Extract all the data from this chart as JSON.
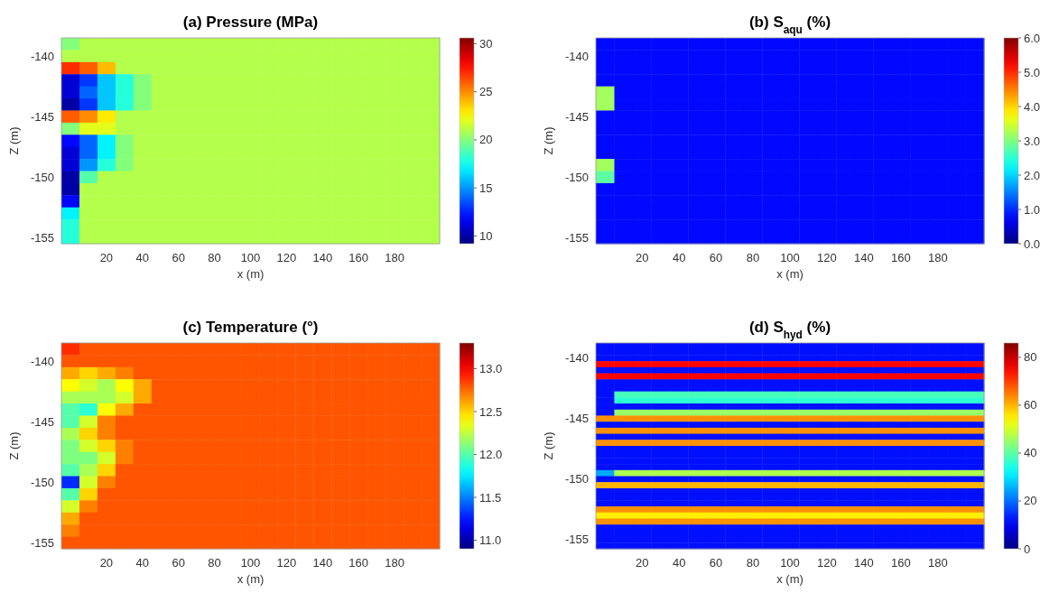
{
  "chart_data": [
    {
      "type": "heatmap",
      "title": "(a) Pressure (MPa)",
      "xlabel": "x (m)",
      "ylabel": "Z (m)",
      "clim": [
        9.2,
        30.6
      ],
      "cticks": [
        10,
        15,
        20,
        25,
        30
      ],
      "categories": [
        null,
        null,
        "20",
        null,
        "40",
        null,
        "60",
        null,
        "80",
        null,
        "100",
        null,
        "120",
        null,
        "140",
        null,
        "160",
        null,
        "180",
        null,
        null
      ],
      "y_categories": [
        null,
        "-140",
        null,
        null,
        null,
        null,
        "-145",
        null,
        null,
        null,
        null,
        "-150",
        null,
        null,
        null,
        null,
        "-155"
      ],
      "cells": [
        [
          20,
          21,
          21,
          21,
          21,
          21,
          21,
          21,
          21,
          21,
          21,
          21,
          21,
          21,
          21,
          21,
          21,
          21,
          21,
          21,
          21
        ],
        [
          21,
          21,
          21,
          21,
          21,
          21,
          21,
          21,
          21,
          21,
          21,
          21,
          21,
          21,
          21,
          21,
          21,
          21,
          21,
          21,
          21
        ],
        [
          27,
          26,
          24,
          21,
          21,
          21,
          21,
          21,
          21,
          21,
          21,
          21,
          21,
          21,
          21,
          21,
          21,
          21,
          21,
          21,
          21
        ],
        [
          11,
          13,
          16,
          18,
          20,
          21,
          21,
          21,
          21,
          21,
          21,
          21,
          21,
          21,
          21,
          21,
          21,
          21,
          21,
          21,
          21
        ],
        [
          11,
          14,
          16,
          18,
          20,
          21,
          21,
          21,
          21,
          21,
          21,
          21,
          21,
          21,
          21,
          21,
          21,
          21,
          21,
          21,
          21
        ],
        [
          10,
          13,
          16,
          18,
          20,
          21,
          21,
          21,
          21,
          21,
          21,
          21,
          21,
          21,
          21,
          21,
          21,
          21,
          21,
          21,
          21
        ],
        [
          26,
          25,
          23,
          21,
          21,
          21,
          21,
          21,
          21,
          21,
          21,
          21,
          21,
          21,
          21,
          21,
          21,
          21,
          21,
          21,
          21
        ],
        [
          20,
          22,
          22,
          21,
          21,
          21,
          21,
          21,
          21,
          21,
          21,
          21,
          21,
          21,
          21,
          21,
          21,
          21,
          21,
          21,
          21
        ],
        [
          12,
          14,
          17,
          20,
          21,
          21,
          21,
          21,
          21,
          21,
          21,
          21,
          21,
          21,
          21,
          21,
          21,
          21,
          21,
          21,
          21
        ],
        [
          11,
          14,
          17,
          20,
          21,
          21,
          21,
          21,
          21,
          21,
          21,
          21,
          21,
          21,
          21,
          21,
          21,
          21,
          21,
          21,
          21
        ],
        [
          11,
          15,
          18,
          20,
          21,
          21,
          21,
          21,
          21,
          21,
          21,
          21,
          21,
          21,
          21,
          21,
          21,
          21,
          21,
          21,
          21
        ],
        [
          10,
          19,
          21,
          21,
          21,
          21,
          21,
          21,
          21,
          21,
          21,
          21,
          21,
          21,
          21,
          21,
          21,
          21,
          21,
          21,
          21
        ],
        [
          10,
          21,
          21,
          21,
          21,
          21,
          21,
          21,
          21,
          21,
          21,
          21,
          21,
          21,
          21,
          21,
          21,
          21,
          21,
          21,
          21
        ],
        [
          12,
          21,
          21,
          21,
          21,
          21,
          21,
          21,
          21,
          21,
          21,
          21,
          21,
          21,
          21,
          21,
          21,
          21,
          21,
          21,
          21
        ],
        [
          17,
          21,
          21,
          21,
          21,
          21,
          21,
          21,
          21,
          21,
          21,
          21,
          21,
          21,
          21,
          21,
          21,
          21,
          21,
          21,
          21
        ],
        [
          18,
          21,
          21,
          21,
          21,
          21,
          21,
          21,
          21,
          21,
          21,
          21,
          21,
          21,
          21,
          21,
          21,
          21,
          21,
          21,
          21
        ],
        [
          18,
          21,
          21,
          21,
          21,
          21,
          21,
          21,
          21,
          21,
          21,
          21,
          21,
          21,
          21,
          21,
          21,
          21,
          21,
          21,
          21
        ]
      ]
    },
    {
      "type": "heatmap",
      "title": "(b) S$_{aqu}$ (%)",
      "xlabel": "x (m)",
      "ylabel": "Z (m)",
      "clim": [
        0,
        6
      ],
      "cticks": [
        {
          "value": 0,
          "label": "0.0"
        },
        {
          "value": 1,
          "label": "1.0"
        },
        {
          "value": 2,
          "label": "2.0"
        },
        {
          "value": 3,
          "label": "3.0"
        },
        {
          "value": 4,
          "label": "4.0"
        },
        {
          "value": 5,
          "label": "5.0"
        },
        {
          "value": 6,
          "label": "6.0"
        }
      ],
      "categories": [
        null,
        null,
        "20",
        null,
        "40",
        null,
        "60",
        null,
        "80",
        null,
        "100",
        null,
        "120",
        null,
        "140",
        null,
        "160",
        null,
        "180",
        null,
        null
      ],
      "y_categories": [
        null,
        "-140",
        null,
        null,
        null,
        null,
        "-145",
        null,
        null,
        null,
        null,
        "-150",
        null,
        null,
        null,
        null,
        "-155"
      ],
      "cells": [
        [
          0.8,
          0.8,
          0.8,
          0.8,
          0.8,
          0.8,
          0.8,
          0.8,
          0.8,
          0.8,
          0.8,
          0.8,
          0.8,
          0.8,
          0.8,
          0.8,
          0.8,
          0.8,
          0.8,
          0.8,
          0.8
        ],
        [
          0.8,
          0.8,
          0.8,
          0.8,
          0.8,
          0.8,
          0.8,
          0.8,
          0.8,
          0.8,
          0.8,
          0.8,
          0.8,
          0.8,
          0.8,
          0.8,
          0.8,
          0.8,
          0.8,
          0.8,
          0.8
        ],
        [
          0.8,
          0.8,
          0.8,
          0.8,
          0.8,
          0.8,
          0.8,
          0.8,
          0.8,
          0.8,
          0.8,
          0.8,
          0.8,
          0.8,
          0.8,
          0.8,
          0.8,
          0.8,
          0.8,
          0.8,
          0.8
        ],
        [
          0.8,
          0.8,
          0.8,
          0.8,
          0.8,
          0.8,
          0.8,
          0.8,
          0.8,
          0.8,
          0.8,
          0.8,
          0.8,
          0.8,
          0.8,
          0.8,
          0.8,
          0.8,
          0.8,
          0.8,
          0.8
        ],
        [
          3.2,
          0.8,
          0.8,
          0.8,
          0.8,
          0.8,
          0.8,
          0.8,
          0.8,
          0.8,
          0.8,
          0.8,
          0.8,
          0.8,
          0.8,
          0.8,
          0.8,
          0.8,
          0.8,
          0.8,
          0.8
        ],
        [
          3.2,
          0.8,
          0.8,
          0.8,
          0.8,
          0.8,
          0.8,
          0.8,
          0.8,
          0.8,
          0.8,
          0.8,
          0.8,
          0.8,
          0.8,
          0.8,
          0.8,
          0.8,
          0.8,
          0.8,
          0.8
        ],
        [
          0.8,
          0.8,
          0.8,
          0.8,
          0.8,
          0.8,
          0.8,
          0.8,
          0.8,
          0.8,
          0.8,
          0.8,
          0.8,
          0.8,
          0.8,
          0.8,
          0.8,
          0.8,
          0.8,
          0.8,
          0.8
        ],
        [
          0.8,
          0.8,
          0.8,
          0.8,
          0.8,
          0.8,
          0.8,
          0.8,
          0.8,
          0.8,
          0.8,
          0.8,
          0.8,
          0.8,
          0.8,
          0.8,
          0.8,
          0.8,
          0.8,
          0.8,
          0.8
        ],
        [
          0.8,
          0.8,
          0.8,
          0.8,
          0.8,
          0.8,
          0.8,
          0.8,
          0.8,
          0.8,
          0.8,
          0.8,
          0.8,
          0.8,
          0.8,
          0.8,
          0.8,
          0.8,
          0.8,
          0.8,
          0.8
        ],
        [
          0.8,
          0.8,
          0.8,
          0.8,
          0.8,
          0.8,
          0.8,
          0.8,
          0.8,
          0.8,
          0.8,
          0.8,
          0.8,
          0.8,
          0.8,
          0.8,
          0.8,
          0.8,
          0.8,
          0.8,
          0.8
        ],
        [
          3.2,
          0.8,
          0.8,
          0.8,
          0.8,
          0.8,
          0.8,
          0.8,
          0.8,
          0.8,
          0.8,
          0.8,
          0.8,
          0.8,
          0.8,
          0.8,
          0.8,
          0.8,
          0.8,
          0.8,
          0.8
        ],
        [
          2.8,
          0.8,
          0.8,
          0.8,
          0.8,
          0.8,
          0.8,
          0.8,
          0.8,
          0.8,
          0.8,
          0.8,
          0.8,
          0.8,
          0.8,
          0.8,
          0.8,
          0.8,
          0.8,
          0.8,
          0.8
        ],
        [
          0.8,
          0.8,
          0.8,
          0.8,
          0.8,
          0.8,
          0.8,
          0.8,
          0.8,
          0.8,
          0.8,
          0.8,
          0.8,
          0.8,
          0.8,
          0.8,
          0.8,
          0.8,
          0.8,
          0.8,
          0.8
        ],
        [
          0.8,
          0.8,
          0.8,
          0.8,
          0.8,
          0.8,
          0.8,
          0.8,
          0.8,
          0.8,
          0.8,
          0.8,
          0.8,
          0.8,
          0.8,
          0.8,
          0.8,
          0.8,
          0.8,
          0.8,
          0.8
        ],
        [
          0.8,
          0.8,
          0.8,
          0.8,
          0.8,
          0.8,
          0.8,
          0.8,
          0.8,
          0.8,
          0.8,
          0.8,
          0.8,
          0.8,
          0.8,
          0.8,
          0.8,
          0.8,
          0.8,
          0.8,
          0.8
        ],
        [
          0.8,
          0.8,
          0.8,
          0.8,
          0.8,
          0.8,
          0.8,
          0.8,
          0.8,
          0.8,
          0.8,
          0.8,
          0.8,
          0.8,
          0.8,
          0.8,
          0.8,
          0.8,
          0.8,
          0.8,
          0.8
        ],
        [
          0.8,
          0.8,
          0.8,
          0.8,
          0.8,
          0.8,
          0.8,
          0.8,
          0.8,
          0.8,
          0.8,
          0.8,
          0.8,
          0.8,
          0.8,
          0.8,
          0.8,
          0.8,
          0.8,
          0.8,
          0.8
        ]
      ]
    },
    {
      "type": "heatmap",
      "title": "(c) Temperature (°)",
      "xlabel": "x (m)",
      "ylabel": "Z (m)",
      "clim": [
        10.9,
        13.3
      ],
      "cticks": [
        {
          "value": 11,
          "label": "11.0"
        },
        {
          "value": 11.5,
          "label": "11.5"
        },
        {
          "value": 12,
          "label": "12.0"
        },
        {
          "value": 12.5,
          "label": "12.5"
        },
        {
          "value": 13,
          "label": "13.0"
        }
      ],
      "categories": [
        null,
        null,
        "20",
        null,
        "40",
        null,
        "60",
        null,
        "80",
        null,
        "100",
        null,
        "120",
        null,
        "140",
        null,
        "160",
        null,
        "180",
        null,
        null
      ],
      "y_categories": [
        null,
        "-140",
        null,
        null,
        null,
        null,
        "-145",
        null,
        null,
        null,
        null,
        "-150",
        null,
        null,
        null,
        null,
        "-155"
      ],
      "cells": [
        [
          12.9,
          12.8,
          12.8,
          12.8,
          12.8,
          12.8,
          12.8,
          12.8,
          12.8,
          12.8,
          12.8,
          12.8,
          12.8,
          12.8,
          12.8,
          12.8,
          12.8,
          12.8,
          12.8,
          12.8,
          12.8
        ],
        [
          12.8,
          12.8,
          12.8,
          12.8,
          12.8,
          12.8,
          12.8,
          12.8,
          12.8,
          12.8,
          12.8,
          12.8,
          12.8,
          12.8,
          12.8,
          12.8,
          12.8,
          12.8,
          12.8,
          12.8,
          12.8
        ],
        [
          12.6,
          12.5,
          12.6,
          12.7,
          12.8,
          12.8,
          12.8,
          12.8,
          12.8,
          12.8,
          12.8,
          12.8,
          12.8,
          12.8,
          12.8,
          12.8,
          12.8,
          12.8,
          12.8,
          12.8,
          12.8
        ],
        [
          12.4,
          12.3,
          12.2,
          12.4,
          12.6,
          12.8,
          12.8,
          12.8,
          12.8,
          12.8,
          12.8,
          12.8,
          12.8,
          12.8,
          12.8,
          12.8,
          12.8,
          12.8,
          12.8,
          12.8,
          12.8
        ],
        [
          12.2,
          12.2,
          12.2,
          12.3,
          12.6,
          12.8,
          12.8,
          12.8,
          12.8,
          12.8,
          12.8,
          12.8,
          12.8,
          12.8,
          12.8,
          12.8,
          12.8,
          12.8,
          12.8,
          12.8,
          12.8
        ],
        [
          12.0,
          11.9,
          12.4,
          12.6,
          12.8,
          12.8,
          12.8,
          12.8,
          12.8,
          12.8,
          12.8,
          12.8,
          12.8,
          12.8,
          12.8,
          12.8,
          12.8,
          12.8,
          12.8,
          12.8,
          12.8
        ],
        [
          12.0,
          12.3,
          12.7,
          12.8,
          12.8,
          12.8,
          12.8,
          12.8,
          12.8,
          12.8,
          12.8,
          12.8,
          12.8,
          12.8,
          12.8,
          12.8,
          12.8,
          12.8,
          12.8,
          12.8,
          12.8
        ],
        [
          12.2,
          12.5,
          12.7,
          12.8,
          12.8,
          12.8,
          12.8,
          12.8,
          12.8,
          12.8,
          12.8,
          12.8,
          12.8,
          12.8,
          12.8,
          12.8,
          12.8,
          12.8,
          12.8,
          12.8,
          12.8
        ],
        [
          12.1,
          12.3,
          12.5,
          12.7,
          12.8,
          12.8,
          12.8,
          12.8,
          12.8,
          12.8,
          12.8,
          12.8,
          12.8,
          12.8,
          12.8,
          12.8,
          12.8,
          12.8,
          12.8,
          12.8,
          12.8
        ],
        [
          12.1,
          12.1,
          12.3,
          12.7,
          12.8,
          12.8,
          12.8,
          12.8,
          12.8,
          12.8,
          12.8,
          12.8,
          12.8,
          12.8,
          12.8,
          12.8,
          12.8,
          12.8,
          12.8,
          12.8,
          12.8
        ],
        [
          12.0,
          12.2,
          12.5,
          12.8,
          12.8,
          12.8,
          12.8,
          12.8,
          12.8,
          12.8,
          12.8,
          12.8,
          12.8,
          12.8,
          12.8,
          12.8,
          12.8,
          12.8,
          12.8,
          12.8,
          12.8
        ],
        [
          11.3,
          12.3,
          12.7,
          12.8,
          12.8,
          12.8,
          12.8,
          12.8,
          12.8,
          12.8,
          12.8,
          12.8,
          12.8,
          12.8,
          12.8,
          12.8,
          12.8,
          12.8,
          12.8,
          12.8,
          12.8
        ],
        [
          12.0,
          12.5,
          12.8,
          12.8,
          12.8,
          12.8,
          12.8,
          12.8,
          12.8,
          12.8,
          12.8,
          12.8,
          12.8,
          12.8,
          12.8,
          12.8,
          12.8,
          12.8,
          12.8,
          12.8,
          12.8
        ],
        [
          12.3,
          12.7,
          12.8,
          12.8,
          12.8,
          12.8,
          12.8,
          12.8,
          12.8,
          12.8,
          12.8,
          12.8,
          12.8,
          12.8,
          12.8,
          12.8,
          12.8,
          12.8,
          12.8,
          12.8,
          12.8
        ],
        [
          12.6,
          12.8,
          12.8,
          12.8,
          12.8,
          12.8,
          12.8,
          12.8,
          12.8,
          12.8,
          12.8,
          12.8,
          12.8,
          12.8,
          12.8,
          12.8,
          12.8,
          12.8,
          12.8,
          12.8,
          12.8
        ],
        [
          12.7,
          12.8,
          12.8,
          12.8,
          12.8,
          12.8,
          12.8,
          12.8,
          12.8,
          12.8,
          12.8,
          12.8,
          12.8,
          12.8,
          12.8,
          12.8,
          12.8,
          12.8,
          12.8,
          12.8,
          12.8
        ],
        [
          12.8,
          12.8,
          12.8,
          12.8,
          12.8,
          12.8,
          12.8,
          12.8,
          12.8,
          12.8,
          12.8,
          12.8,
          12.8,
          12.8,
          12.8,
          12.8,
          12.8,
          12.8,
          12.8,
          12.8,
          12.8
        ]
      ]
    },
    {
      "type": "heatmap",
      "title": "(d) S$_{hyd}$ (%)",
      "xlabel": "x (m)",
      "ylabel": "Z (m)",
      "clim": [
        0,
        86
      ],
      "cticks": [
        0,
        20,
        40,
        60,
        80
      ],
      "categories": [
        null,
        null,
        "20",
        null,
        "40",
        null,
        "60",
        null,
        "80",
        null,
        "100",
        null,
        "120",
        null,
        "140",
        null,
        "160",
        null,
        "180",
        null,
        null
      ],
      "y_categories": [
        null,
        null,
        "-140",
        null,
        null,
        null,
        null,
        null,
        null,
        null,
        null,
        null,
        "-145",
        null,
        null,
        null,
        null,
        null,
        null,
        null,
        null,
        null,
        "-150",
        null,
        null,
        null,
        null,
        null,
        null,
        null,
        null,
        null,
        "-155",
        null
      ],
      "cells": [
        [
          12,
          12,
          12,
          12,
          12,
          12,
          12,
          12,
          12,
          12,
          12,
          12,
          12,
          12,
          12,
          12,
          12,
          12,
          12,
          12,
          12
        ],
        [
          12,
          12,
          12,
          12,
          12,
          12,
          12,
          12,
          12,
          12,
          12,
          12,
          12,
          12,
          12,
          12,
          12,
          12,
          12,
          12,
          12
        ],
        [
          12,
          12,
          12,
          12,
          12,
          12,
          12,
          12,
          12,
          12,
          12,
          12,
          12,
          12,
          12,
          12,
          12,
          12,
          12,
          12,
          12
        ],
        [
          75,
          75,
          75,
          75,
          75,
          75,
          75,
          75,
          75,
          75,
          75,
          75,
          75,
          75,
          75,
          75,
          75,
          75,
          75,
          75,
          75
        ],
        [
          12,
          12,
          12,
          12,
          12,
          12,
          12,
          12,
          12,
          12,
          12,
          12,
          12,
          12,
          12,
          12,
          12,
          12,
          12,
          12,
          12
        ],
        [
          75,
          75,
          75,
          75,
          75,
          75,
          75,
          75,
          75,
          75,
          75,
          75,
          75,
          75,
          75,
          75,
          75,
          75,
          75,
          75,
          75
        ],
        [
          12,
          12,
          12,
          12,
          12,
          12,
          12,
          12,
          12,
          12,
          12,
          12,
          12,
          12,
          12,
          12,
          12,
          12,
          12,
          12,
          12
        ],
        [
          12,
          12,
          12,
          12,
          12,
          12,
          12,
          12,
          12,
          12,
          12,
          12,
          12,
          12,
          12,
          12,
          12,
          12,
          12,
          12,
          12
        ],
        [
          12,
          38,
          38,
          38,
          38,
          38,
          38,
          38,
          38,
          38,
          38,
          38,
          38,
          38,
          38,
          38,
          38,
          38,
          38,
          38,
          38
        ],
        [
          12,
          36,
          36,
          36,
          36,
          36,
          36,
          36,
          36,
          36,
          36,
          36,
          36,
          36,
          36,
          36,
          36,
          36,
          36,
          36,
          36
        ],
        [
          12,
          12,
          12,
          12,
          12,
          12,
          12,
          12,
          12,
          12,
          12,
          12,
          12,
          12,
          12,
          12,
          12,
          12,
          12,
          12,
          12
        ],
        [
          12,
          45,
          45,
          45,
          45,
          45,
          45,
          45,
          45,
          45,
          45,
          45,
          45,
          45,
          45,
          45,
          45,
          45,
          45,
          45,
          45
        ],
        [
          63,
          63,
          63,
          63,
          63,
          63,
          63,
          63,
          63,
          63,
          63,
          63,
          63,
          63,
          63,
          63,
          63,
          63,
          63,
          63,
          63
        ],
        [
          12,
          12,
          12,
          12,
          12,
          12,
          12,
          12,
          12,
          12,
          12,
          12,
          12,
          12,
          12,
          12,
          12,
          12,
          12,
          12,
          12
        ],
        [
          63,
          63,
          63,
          63,
          63,
          63,
          63,
          63,
          63,
          63,
          63,
          63,
          63,
          63,
          63,
          63,
          63,
          63,
          63,
          63,
          63
        ],
        [
          12,
          12,
          12,
          12,
          12,
          12,
          12,
          12,
          12,
          12,
          12,
          12,
          12,
          12,
          12,
          12,
          12,
          12,
          12,
          12,
          12
        ],
        [
          63,
          63,
          63,
          63,
          63,
          63,
          63,
          63,
          63,
          63,
          63,
          63,
          63,
          63,
          63,
          63,
          63,
          63,
          63,
          63,
          63
        ],
        [
          12,
          12,
          12,
          12,
          12,
          12,
          12,
          12,
          12,
          12,
          12,
          12,
          12,
          12,
          12,
          12,
          12,
          12,
          12,
          12,
          12
        ],
        [
          12,
          12,
          12,
          12,
          12,
          12,
          12,
          12,
          12,
          12,
          12,
          12,
          12,
          12,
          12,
          12,
          12,
          12,
          12,
          12,
          12
        ],
        [
          12,
          12,
          12,
          12,
          12,
          12,
          12,
          12,
          12,
          12,
          12,
          12,
          12,
          12,
          12,
          12,
          12,
          12,
          12,
          12,
          12
        ],
        [
          12,
          12,
          12,
          12,
          12,
          12,
          12,
          12,
          12,
          12,
          12,
          12,
          12,
          12,
          12,
          12,
          12,
          12,
          12,
          12,
          12
        ],
        [
          25,
          47,
          47,
          47,
          47,
          47,
          47,
          47,
          47,
          47,
          47,
          47,
          47,
          47,
          47,
          47,
          47,
          47,
          47,
          47,
          47
        ],
        [
          12,
          12,
          12,
          12,
          12,
          12,
          12,
          12,
          12,
          12,
          12,
          12,
          12,
          12,
          12,
          12,
          12,
          12,
          12,
          12,
          12
        ],
        [
          60,
          60,
          60,
          60,
          60,
          60,
          60,
          60,
          60,
          60,
          60,
          60,
          60,
          60,
          60,
          60,
          60,
          60,
          60,
          60,
          60
        ],
        [
          12,
          12,
          12,
          12,
          12,
          12,
          12,
          12,
          12,
          12,
          12,
          12,
          12,
          12,
          12,
          12,
          12,
          12,
          12,
          12,
          12
        ],
        [
          12,
          12,
          12,
          12,
          12,
          12,
          12,
          12,
          12,
          12,
          12,
          12,
          12,
          12,
          12,
          12,
          12,
          12,
          12,
          12,
          12
        ],
        [
          12,
          12,
          12,
          12,
          12,
          12,
          12,
          12,
          12,
          12,
          12,
          12,
          12,
          12,
          12,
          12,
          12,
          12,
          12,
          12,
          12
        ],
        [
          63,
          63,
          63,
          63,
          63,
          63,
          63,
          63,
          63,
          63,
          63,
          63,
          63,
          63,
          63,
          63,
          63,
          63,
          63,
          63,
          63
        ],
        [
          55,
          55,
          55,
          55,
          55,
          55,
          55,
          55,
          55,
          55,
          55,
          55,
          55,
          55,
          55,
          55,
          55,
          55,
          55,
          55,
          55
        ],
        [
          63,
          63,
          63,
          63,
          63,
          63,
          63,
          63,
          63,
          63,
          63,
          63,
          63,
          63,
          63,
          63,
          63,
          63,
          63,
          63,
          63
        ],
        [
          12,
          12,
          12,
          12,
          12,
          12,
          12,
          12,
          12,
          12,
          12,
          12,
          12,
          12,
          12,
          12,
          12,
          12,
          12,
          12,
          12
        ],
        [
          12,
          12,
          12,
          12,
          12,
          12,
          12,
          12,
          12,
          12,
          12,
          12,
          12,
          12,
          12,
          12,
          12,
          12,
          12,
          12,
          12
        ],
        [
          12,
          12,
          12,
          12,
          12,
          12,
          12,
          12,
          12,
          12,
          12,
          12,
          12,
          12,
          12,
          12,
          12,
          12,
          12,
          12,
          12
        ],
        [
          12,
          12,
          12,
          12,
          12,
          12,
          12,
          12,
          12,
          12,
          12,
          12,
          12,
          12,
          12,
          12,
          12,
          12,
          12,
          12,
          12
        ]
      ]
    }
  ]
}
